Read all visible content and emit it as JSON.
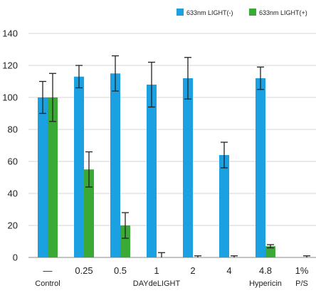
{
  "chart_data": {
    "type": "bar",
    "categories": [
      "—",
      "0.25",
      "0.5",
      "1",
      "2",
      "4",
      "4.8",
      "1%"
    ],
    "series": [
      {
        "name": "633nm LIGHT(-)",
        "color": "#1ba1e2",
        "values": [
          100,
          113,
          115,
          108,
          112,
          64,
          112,
          null
        ],
        "errors": [
          10,
          7,
          11,
          14,
          13,
          8,
          7,
          null
        ]
      },
      {
        "name": "633nm LIGHT(+)",
        "color": "#3aa935",
        "values": [
          100,
          55,
          20,
          0,
          0,
          0,
          7,
          0
        ],
        "errors": [
          15,
          11,
          8,
          3,
          1,
          1,
          1,
          1
        ]
      }
    ],
    "ylim": [
      0,
      140
    ],
    "yticks": [
      0,
      20,
      40,
      60,
      80,
      100,
      120,
      140
    ],
    "grid": true,
    "legend_position": "top-right",
    "group_labels": [
      {
        "text": "Control",
        "from": 0,
        "to": 0
      },
      {
        "text": "DAYdeLIGHT",
        "from": 1,
        "to": 5
      },
      {
        "text": "Hypericin",
        "from": 6,
        "to": 6
      },
      {
        "text": "P/S",
        "from": 7,
        "to": 7
      }
    ]
  }
}
